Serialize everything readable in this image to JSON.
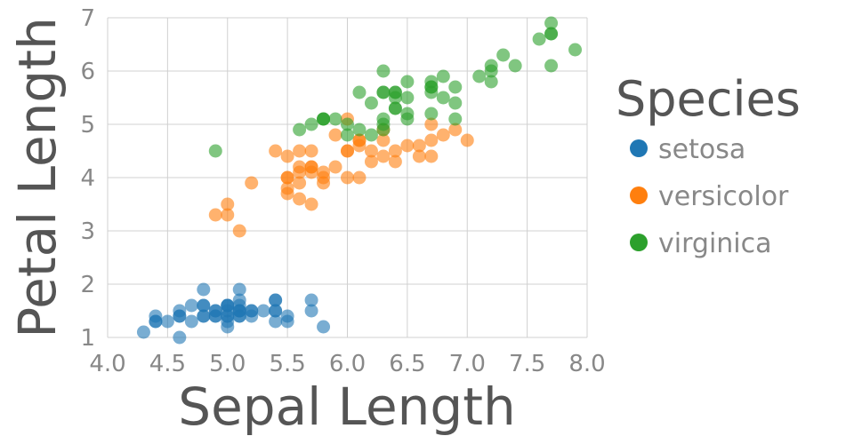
{
  "chart_data": {
    "type": "scatter",
    "xlabel": "Sepal Length",
    "ylabel": "Petal Length",
    "xlim": [
      4.0,
      8.0
    ],
    "ylim": [
      1,
      7
    ],
    "x_ticks": [
      "4.0",
      "4.5",
      "5.0",
      "5.5",
      "6.0",
      "6.5",
      "7.0",
      "7.5",
      "8.0"
    ],
    "y_ticks": [
      "1",
      "2",
      "3",
      "4",
      "5",
      "6",
      "7"
    ],
    "grid": true,
    "legend": {
      "title": "Species",
      "placement": "right"
    },
    "series": [
      {
        "name": "setosa",
        "color": "#1f77b4",
        "points": [
          [
            5.1,
            1.4
          ],
          [
            4.9,
            1.4
          ],
          [
            4.7,
            1.3
          ],
          [
            4.6,
            1.5
          ],
          [
            5.0,
            1.4
          ],
          [
            5.4,
            1.7
          ],
          [
            4.6,
            1.4
          ],
          [
            5.0,
            1.5
          ],
          [
            4.4,
            1.4
          ],
          [
            4.9,
            1.5
          ],
          [
            5.4,
            1.5
          ],
          [
            4.8,
            1.6
          ],
          [
            4.8,
            1.4
          ],
          [
            4.3,
            1.1
          ],
          [
            5.8,
            1.2
          ],
          [
            5.7,
            1.5
          ],
          [
            5.4,
            1.3
          ],
          [
            5.1,
            1.4
          ],
          [
            5.7,
            1.7
          ],
          [
            5.1,
            1.5
          ],
          [
            5.4,
            1.7
          ],
          [
            5.1,
            1.5
          ],
          [
            4.6,
            1.0
          ],
          [
            5.1,
            1.7
          ],
          [
            4.8,
            1.9
          ],
          [
            5.0,
            1.6
          ],
          [
            5.0,
            1.6
          ],
          [
            5.2,
            1.5
          ],
          [
            5.2,
            1.4
          ],
          [
            4.7,
            1.6
          ],
          [
            4.8,
            1.6
          ],
          [
            5.4,
            1.5
          ],
          [
            5.2,
            1.5
          ],
          [
            5.5,
            1.4
          ],
          [
            4.9,
            1.5
          ],
          [
            5.0,
            1.2
          ],
          [
            5.5,
            1.3
          ],
          [
            4.9,
            1.4
          ],
          [
            4.4,
            1.3
          ],
          [
            5.1,
            1.5
          ],
          [
            5.0,
            1.3
          ],
          [
            4.5,
            1.3
          ],
          [
            4.4,
            1.3
          ],
          [
            5.0,
            1.6
          ],
          [
            5.1,
            1.9
          ],
          [
            4.8,
            1.4
          ],
          [
            5.1,
            1.6
          ],
          [
            4.6,
            1.4
          ],
          [
            5.3,
            1.5
          ],
          [
            5.0,
            1.4
          ]
        ]
      },
      {
        "name": "versicolor",
        "color": "#ff7f0e",
        "points": [
          [
            7.0,
            4.7
          ],
          [
            6.4,
            4.5
          ],
          [
            6.9,
            4.9
          ],
          [
            5.5,
            4.0
          ],
          [
            6.5,
            4.6
          ],
          [
            5.7,
            4.5
          ],
          [
            6.3,
            4.7
          ],
          [
            4.9,
            3.3
          ],
          [
            6.6,
            4.6
          ],
          [
            5.2,
            3.9
          ],
          [
            5.0,
            3.5
          ],
          [
            5.9,
            4.2
          ],
          [
            6.0,
            4.0
          ],
          [
            6.1,
            4.7
          ],
          [
            5.6,
            3.6
          ],
          [
            6.7,
            4.4
          ],
          [
            5.6,
            4.5
          ],
          [
            5.8,
            4.1
          ],
          [
            6.2,
            4.5
          ],
          [
            5.6,
            3.9
          ],
          [
            5.9,
            4.8
          ],
          [
            6.1,
            4.0
          ],
          [
            6.3,
            4.9
          ],
          [
            6.1,
            4.7
          ],
          [
            6.4,
            4.3
          ],
          [
            6.6,
            4.4
          ],
          [
            6.8,
            4.8
          ],
          [
            6.7,
            5.0
          ],
          [
            6.0,
            4.5
          ],
          [
            5.7,
            3.5
          ],
          [
            5.5,
            3.8
          ],
          [
            5.5,
            3.7
          ],
          [
            5.8,
            3.9
          ],
          [
            6.0,
            5.1
          ],
          [
            5.4,
            4.5
          ],
          [
            6.0,
            4.5
          ],
          [
            6.7,
            4.7
          ],
          [
            6.3,
            4.4
          ],
          [
            5.6,
            4.1
          ],
          [
            5.5,
            4.0
          ],
          [
            5.5,
            4.4
          ],
          [
            6.1,
            4.6
          ],
          [
            5.8,
            4.0
          ],
          [
            5.0,
            3.3
          ],
          [
            5.6,
            4.2
          ],
          [
            5.7,
            4.2
          ],
          [
            5.7,
            4.2
          ],
          [
            6.2,
            4.3
          ],
          [
            5.1,
            3.0
          ],
          [
            5.7,
            4.1
          ]
        ]
      },
      {
        "name": "virginica",
        "color": "#2ca02c",
        "points": [
          [
            6.3,
            6.0
          ],
          [
            5.8,
            5.1
          ],
          [
            7.1,
            5.9
          ],
          [
            6.3,
            5.6
          ],
          [
            6.5,
            5.8
          ],
          [
            7.6,
            6.6
          ],
          [
            4.9,
            4.5
          ],
          [
            7.3,
            6.3
          ],
          [
            6.7,
            5.8
          ],
          [
            7.2,
            6.1
          ],
          [
            6.5,
            5.1
          ],
          [
            6.4,
            5.3
          ],
          [
            6.8,
            5.5
          ],
          [
            5.7,
            5.0
          ],
          [
            5.8,
            5.1
          ],
          [
            6.4,
            5.3
          ],
          [
            6.5,
            5.5
          ],
          [
            7.7,
            6.7
          ],
          [
            7.7,
            6.9
          ],
          [
            6.0,
            5.0
          ],
          [
            6.9,
            5.7
          ],
          [
            5.6,
            4.9
          ],
          [
            7.7,
            6.7
          ],
          [
            6.3,
            4.9
          ],
          [
            6.7,
            5.7
          ],
          [
            7.2,
            6.0
          ],
          [
            6.2,
            4.8
          ],
          [
            6.1,
            4.9
          ],
          [
            6.4,
            5.6
          ],
          [
            7.2,
            5.8
          ],
          [
            7.4,
            6.1
          ],
          [
            7.9,
            6.4
          ],
          [
            6.4,
            5.6
          ],
          [
            6.3,
            5.1
          ],
          [
            6.1,
            5.6
          ],
          [
            7.7,
            6.1
          ],
          [
            6.3,
            5.6
          ],
          [
            6.4,
            5.5
          ],
          [
            6.0,
            4.8
          ],
          [
            6.9,
            5.4
          ],
          [
            6.7,
            5.6
          ],
          [
            6.9,
            5.1
          ],
          [
            5.8,
            5.1
          ],
          [
            6.8,
            5.9
          ],
          [
            6.7,
            5.7
          ],
          [
            6.7,
            5.2
          ],
          [
            6.3,
            5.0
          ],
          [
            6.5,
            5.2
          ],
          [
            6.2,
            5.4
          ],
          [
            5.9,
            5.1
          ]
        ]
      }
    ]
  }
}
